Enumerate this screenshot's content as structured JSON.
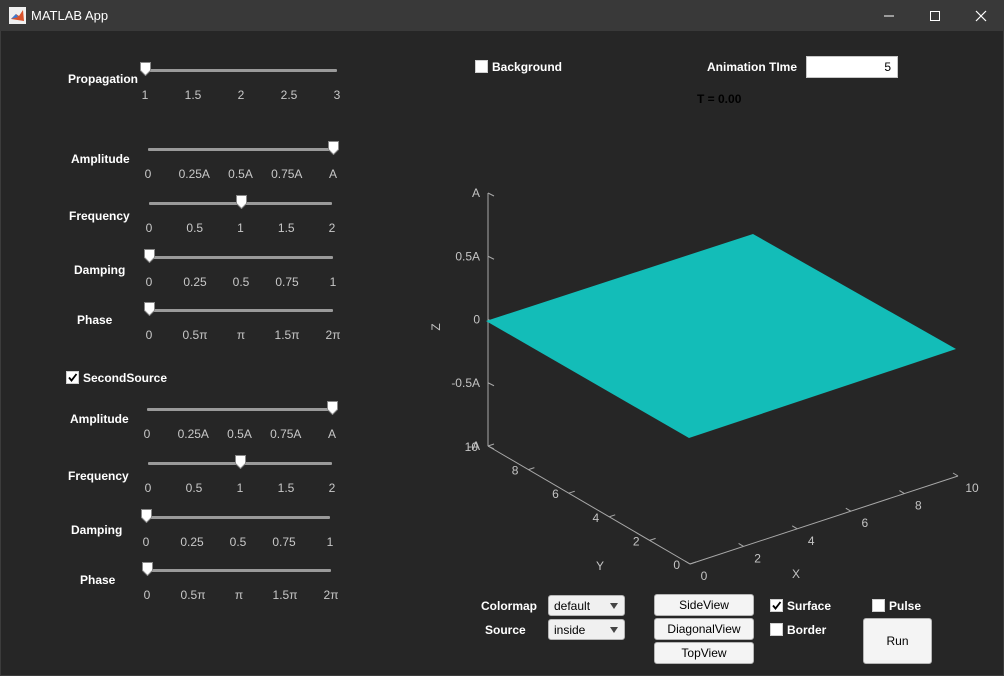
{
  "window": {
    "title": "MATLAB App"
  },
  "left": {
    "propagation": {
      "label": "Propagation",
      "ticks": [
        "1",
        "1.5",
        "2",
        "2.5",
        "3"
      ],
      "value": 1
    },
    "source1": {
      "amplitude": {
        "label": "Amplitude",
        "ticks": [
          "0",
          "0.25A",
          "0.5A",
          "0.75A",
          "A"
        ],
        "fraction": 1.0
      },
      "frequency": {
        "label": "Frequency",
        "ticks": [
          "0",
          "0.5",
          "1",
          "1.5",
          "2"
        ],
        "value": 1
      },
      "damping": {
        "label": "Damping",
        "ticks": [
          "0",
          "0.25",
          "0.5",
          "0.75",
          "1"
        ],
        "value": 0
      },
      "phase": {
        "label": "Phase",
        "ticks": [
          "0",
          "0.5π",
          "π",
          "1.5π",
          "2π"
        ],
        "fraction": 0
      }
    },
    "second_source": {
      "label": "SecondSource",
      "checked": true
    },
    "source2": {
      "amplitude": {
        "label": "Amplitude",
        "ticks": [
          "0",
          "0.25A",
          "0.5A",
          "0.75A",
          "A"
        ],
        "fraction": 1.0
      },
      "frequency": {
        "label": "Frequency",
        "ticks": [
          "0",
          "0.5",
          "1",
          "1.5",
          "2"
        ],
        "value": 1
      },
      "damping": {
        "label": "Damping",
        "ticks": [
          "0",
          "0.25",
          "0.5",
          "0.75",
          "1"
        ],
        "value": 0
      },
      "phase": {
        "label": "Phase",
        "ticks": [
          "0",
          "0.5π",
          "π",
          "1.5π",
          "2π"
        ],
        "fraction": 0
      }
    }
  },
  "top": {
    "background": {
      "label": "Background",
      "checked": false
    },
    "animation_time": {
      "label": "Animation TIme",
      "value": "5"
    },
    "time_readout": "T = 0.00"
  },
  "plot": {
    "zlabel": "Z",
    "ylabel": "Y",
    "xlabel": "X",
    "z_ticks": [
      "A",
      "0.5A",
      "0",
      "-0.5A",
      "-A"
    ],
    "y_ticks": [
      "0",
      "2",
      "4",
      "6",
      "8",
      "10"
    ],
    "x_ticks": [
      "0",
      "2",
      "4",
      "6",
      "8",
      "10"
    ],
    "surface_color": "#13bdb8"
  },
  "bottom": {
    "colormap": {
      "label": "Colormap",
      "value": "default"
    },
    "source": {
      "label": "Source",
      "value": "inside"
    },
    "views": {
      "side": "SideView",
      "diagonal": "DiagonalView",
      "top": "TopView"
    },
    "surface": {
      "label": "Surface",
      "checked": true
    },
    "border": {
      "label": "Border",
      "checked": false
    },
    "pulse": {
      "label": "Pulse",
      "checked": false
    },
    "run": "Run"
  }
}
